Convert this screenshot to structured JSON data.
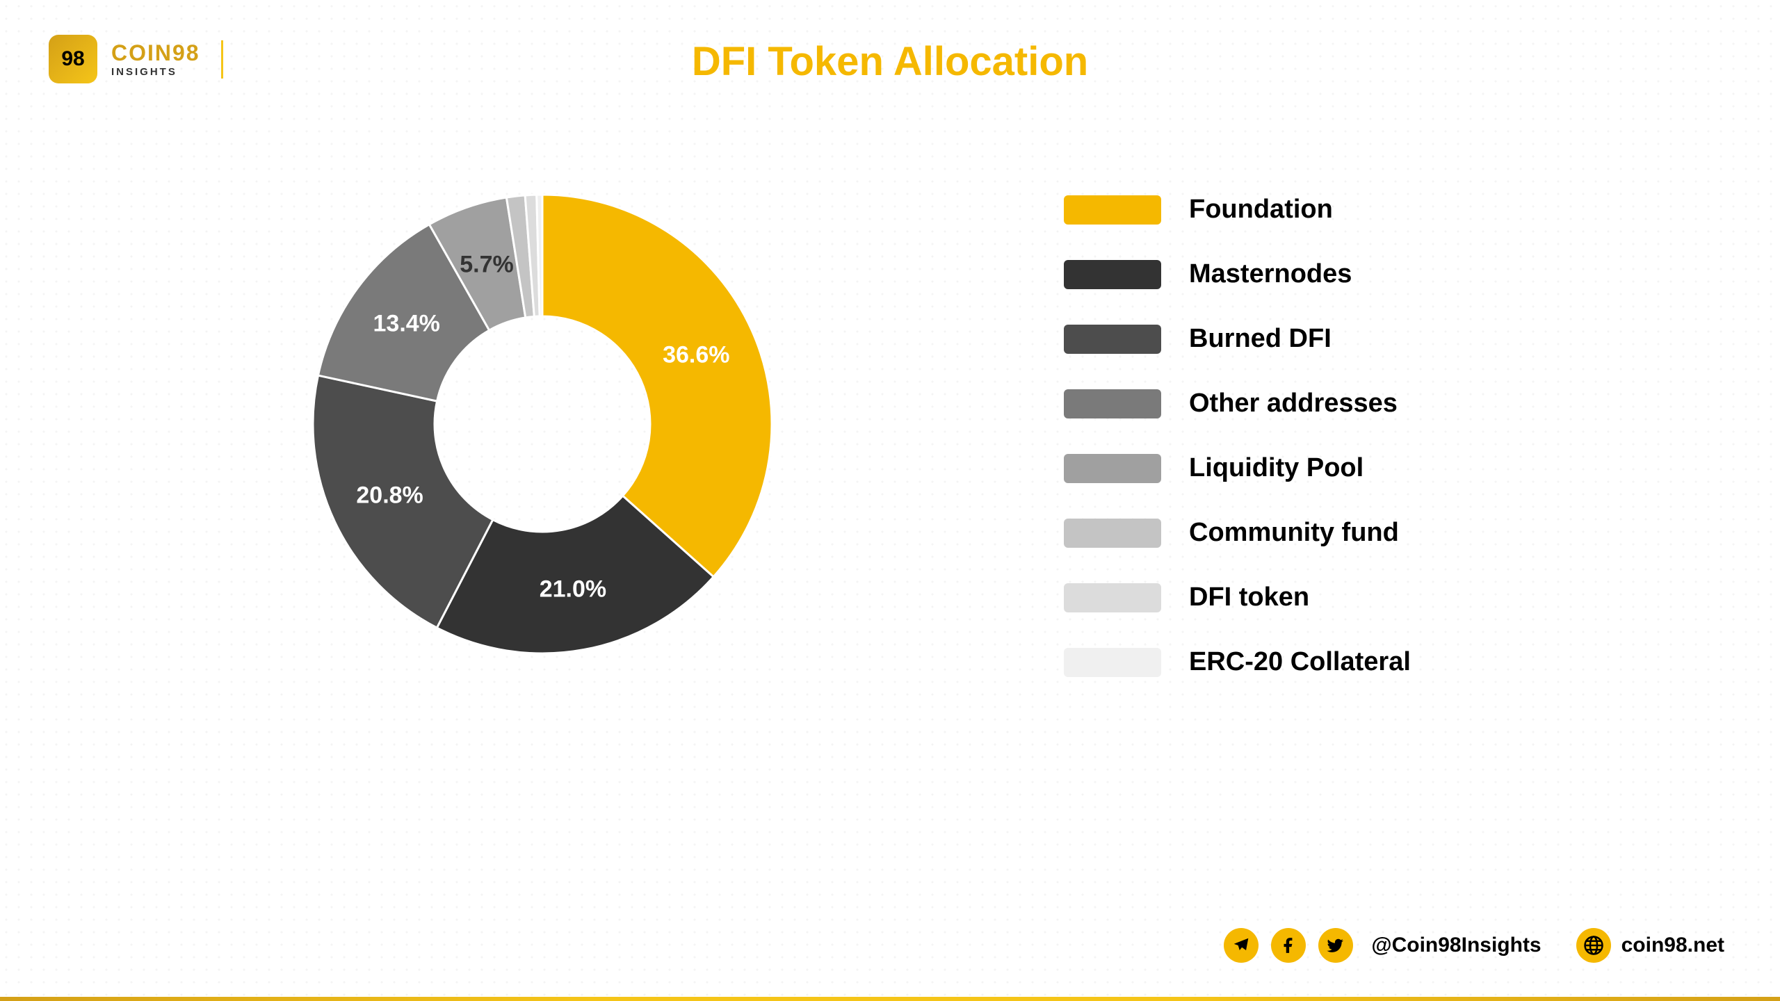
{
  "logo": {
    "badge_text": "98",
    "main": "COIN98",
    "sub": "INSIGHTS"
  },
  "title": "DFI Token Allocation",
  "chart": {
    "type": "donut",
    "inner_radius_pct": 45,
    "outer_radius_pct": 100,
    "background_color": "#ffffff",
    "label_fontsize": 34,
    "label_color_light": "#ffffff",
    "label_color_dark": "#333333",
    "slices": [
      {
        "label": "Foundation",
        "value": 36.6,
        "display": "36.6%",
        "color": "#f5b800",
        "show_label": true,
        "label_dark": false
      },
      {
        "label": "Masternodes",
        "value": 21.0,
        "display": "21.0%",
        "color": "#333333",
        "show_label": true,
        "label_dark": false
      },
      {
        "label": "Burned DFI",
        "value": 20.8,
        "display": "20.8%",
        "color": "#4d4d4d",
        "show_label": true,
        "label_dark": false
      },
      {
        "label": "Other addresses",
        "value": 13.4,
        "display": "13.4%",
        "color": "#7a7a7a",
        "show_label": true,
        "label_dark": false
      },
      {
        "label": "Liquidity Pool",
        "value": 5.7,
        "display": "5.7%",
        "color": "#a0a0a0",
        "show_label": true,
        "label_dark": true
      },
      {
        "label": "Community fund",
        "value": 1.3,
        "display": "",
        "color": "#c4c4c4",
        "show_label": false,
        "label_dark": true
      },
      {
        "label": "DFI token",
        "value": 0.8,
        "display": "",
        "color": "#dcdcdc",
        "show_label": false,
        "label_dark": true
      },
      {
        "label": "ERC-20 Collateral",
        "value": 0.4,
        "display": "",
        "color": "#f0f0f0",
        "show_label": false,
        "label_dark": true
      }
    ]
  },
  "legend": {
    "swatch_width": 140,
    "swatch_height": 42,
    "swatch_radius": 6,
    "fontsize": 38,
    "gap": 50,
    "items": [
      {
        "label": "Foundation",
        "color": "#f5b800"
      },
      {
        "label": "Masternodes",
        "color": "#333333"
      },
      {
        "label": "Burned DFI",
        "color": "#4d4d4d"
      },
      {
        "label": "Other addresses",
        "color": "#7a7a7a"
      },
      {
        "label": "Liquidity Pool",
        "color": "#a0a0a0"
      },
      {
        "label": "Community fund",
        "color": "#c4c4c4"
      },
      {
        "label": "DFI token",
        "color": "#dcdcdc"
      },
      {
        "label": "ERC-20 Collateral",
        "color": "#f0f0f0"
      }
    ]
  },
  "footer": {
    "handle": "@Coin98Insights",
    "website": "coin98.net",
    "icon_bg": "#f5b800"
  }
}
